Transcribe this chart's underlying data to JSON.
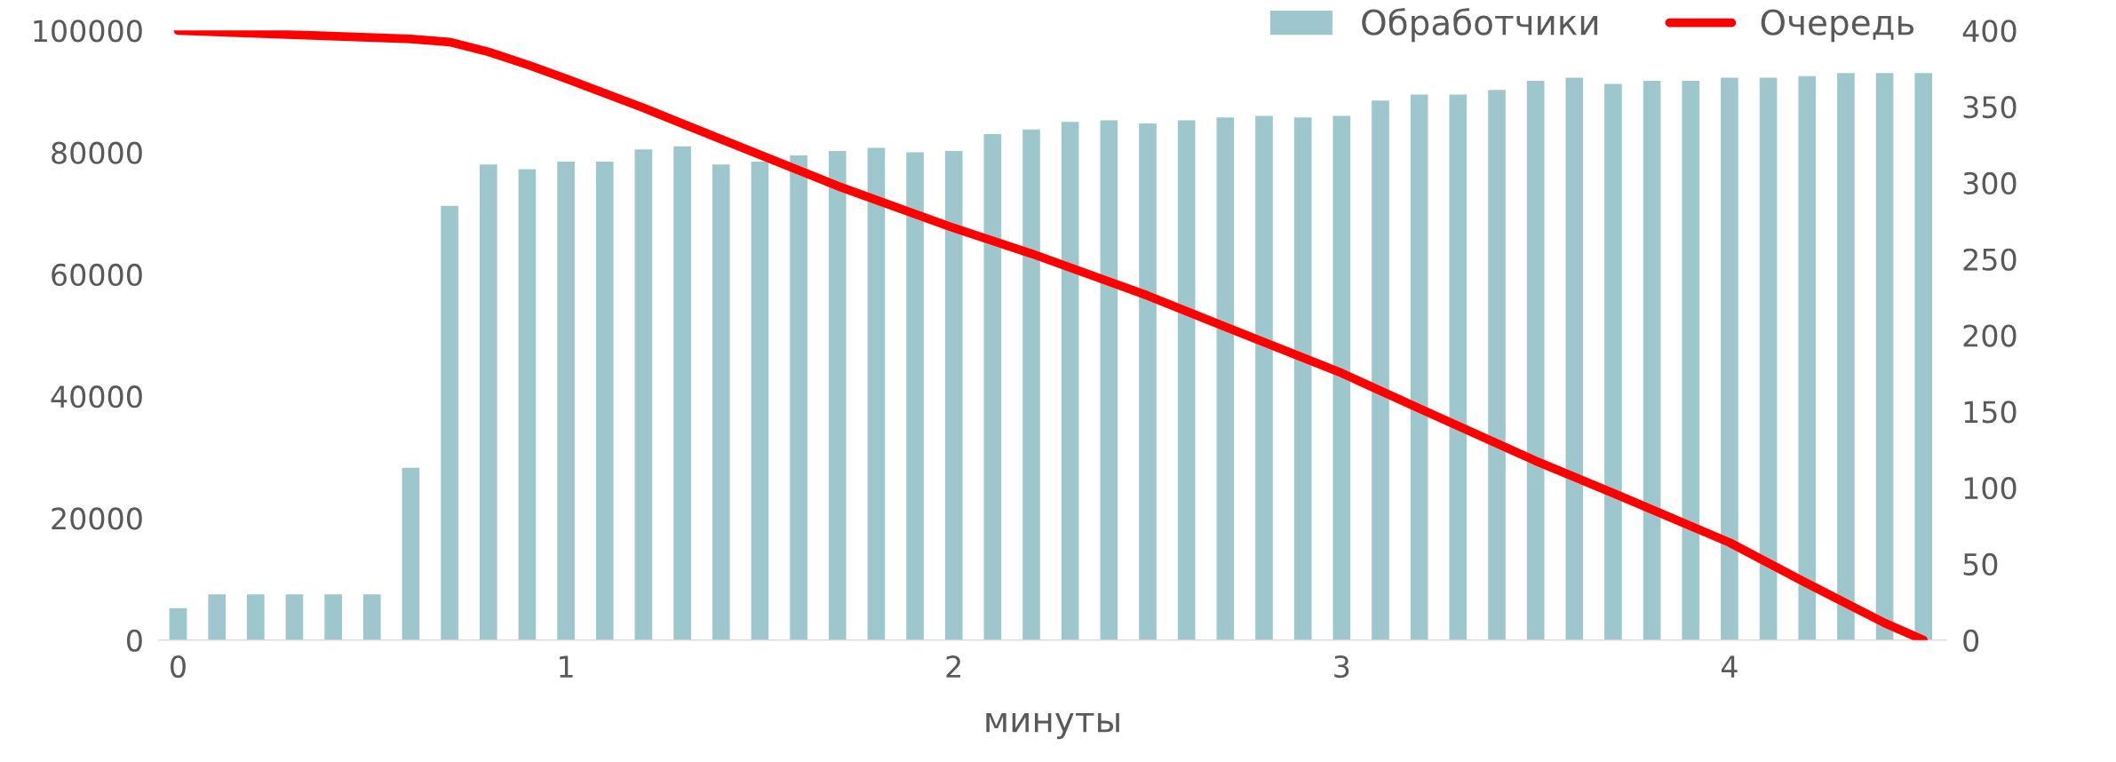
{
  "chart_data": {
    "type": "bar",
    "xlabel": "минуты",
    "xlim": [
      -0.05,
      4.56
    ],
    "xticks": [
      0,
      1,
      2,
      3,
      4
    ],
    "ylim": [
      0,
      100000
    ],
    "yticks": [
      0,
      20000,
      40000,
      60000,
      80000,
      100000
    ],
    "y2lim": [
      0,
      400
    ],
    "y2ticks": [
      0,
      50,
      100,
      150,
      200,
      250,
      300,
      350,
      400
    ],
    "grid": false,
    "legend": "top right",
    "series": [
      {
        "name": "Обработчики",
        "axis": "y2",
        "color": "#9ec6cd",
        "x": [
          0,
          0.1,
          0.2,
          0.3,
          0.4,
          0.5,
          0.6,
          0.7,
          0.8,
          0.9,
          1.0,
          1.1,
          1.2,
          1.3,
          1.4,
          1.5,
          1.6,
          1.7,
          1.8,
          1.9,
          2.0,
          2.1,
          2.2,
          2.3,
          2.4,
          2.5,
          2.6,
          2.7,
          2.8,
          2.9,
          3.0,
          3.1,
          3.2,
          3.3,
          3.4,
          3.5,
          3.6,
          3.7,
          3.8,
          3.9,
          4.0,
          4.1,
          4.2,
          4.3,
          4.4,
          4.5
        ],
        "values": [
          21,
          30,
          30,
          30,
          30,
          30,
          113,
          285,
          312,
          309,
          314,
          314,
          322,
          324,
          312,
          314,
          318,
          321,
          323,
          320,
          321,
          332,
          335,
          340,
          341,
          339,
          341,
          343,
          344,
          343,
          344,
          354,
          358,
          358,
          361,
          367,
          369,
          365,
          367,
          367,
          369,
          369,
          370,
          372,
          372,
          372
        ]
      },
      {
        "name": "Очередь",
        "type": "line",
        "color": "#ff0000",
        "marker": "none",
        "line_style": "solid",
        "x": [
          0,
          0.6,
          0.7,
          0.8,
          0.9,
          1.0,
          1.2,
          1.5,
          1.7,
          2.0,
          2.2,
          2.5,
          2.7,
          3.0,
          3.2,
          3.5,
          3.7,
          4.0,
          4.2,
          4.4,
          4.5
        ],
        "values": [
          100000,
          98600,
          98100,
          96500,
          94400,
          92100,
          87300,
          79600,
          74500,
          67600,
          63400,
          56500,
          51400,
          43800,
          38000,
          29400,
          24100,
          16000,
          9300,
          2800,
          0
        ]
      }
    ]
  }
}
